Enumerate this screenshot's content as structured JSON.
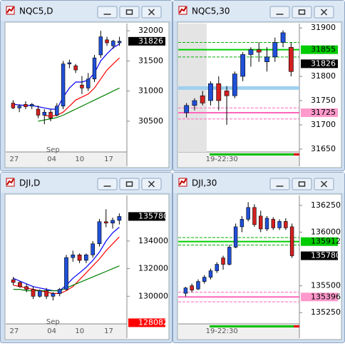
{
  "windows": [
    {
      "title": "NQC5,D",
      "chart": {
        "type": "candlestick",
        "ylim": [
          29990,
          32120
        ],
        "yticks": [
          30500,
          31000,
          31500,
          32000
        ],
        "xticks": [
          "27",
          "Sep",
          "04",
          "10",
          "17"
        ],
        "candles": [
          [
            30800,
            30850,
            30700,
            30720
          ],
          [
            30720,
            30780,
            30650,
            30750
          ],
          [
            30780,
            30830,
            30700,
            30740
          ],
          [
            30750,
            30800,
            30700,
            30780
          ],
          [
            30700,
            30760,
            30550,
            30600
          ],
          [
            30600,
            30700,
            30450,
            30650
          ],
          [
            30650,
            30700,
            30500,
            30550
          ],
          [
            30600,
            30800,
            30580,
            30750
          ],
          [
            30750,
            31500,
            30700,
            31450
          ],
          [
            31450,
            31520,
            31380,
            31470
          ],
          [
            31420,
            31450,
            31300,
            31350
          ],
          [
            31100,
            31250,
            30950,
            31050
          ],
          [
            31050,
            31300,
            31000,
            31200
          ],
          [
            31200,
            31600,
            31150,
            31550
          ],
          [
            31600,
            32000,
            31550,
            31900
          ],
          [
            31850,
            31900,
            31750,
            31800
          ],
          [
            31750,
            31850,
            31700,
            31830
          ],
          [
            31800,
            31900,
            31750,
            31826
          ]
        ],
        "lines": [
          {
            "color": "#0000ff",
            "values": [
              30780,
              30770,
              30760,
              30760,
              30740,
              30720,
              30700,
              30700,
              30900,
              31050,
              31150,
              31150,
              31180,
              31300,
              31500,
              31620,
              31720,
              31780
            ]
          },
          {
            "color": "#ff0000",
            "values": [
              null,
              null,
              null,
              null,
              null,
              30600,
              30580,
              30600,
              30650,
              30750,
              30850,
              30900,
              30950,
              31050,
              31200,
              31350,
              31450,
              31550
            ]
          },
          {
            "color": "#008000",
            "values": [
              null,
              null,
              null,
              null,
              30500,
              30520,
              30540,
              30560,
              30600,
              30650,
              30700,
              30750,
              30800,
              30850,
              30900,
              30950,
              31000,
              31050
            ]
          }
        ],
        "levels": [],
        "tags": [
          {
            "value": 31826,
            "color": "#000000"
          }
        ]
      }
    },
    {
      "title": "NQC5,30",
      "chart": {
        "type": "candlestick",
        "ylim": [
          31644,
          31909
        ],
        "yticks": [
          31650,
          31700,
          31750,
          31800,
          31900
        ],
        "xticks": [
          "19-22:30"
        ],
        "candles": [
          [
            31725,
            31745,
            31715,
            31740
          ],
          [
            31740,
            31755,
            31730,
            31750
          ],
          [
            31760,
            31770,
            31740,
            31745
          ],
          [
            31750,
            31790,
            31740,
            31785
          ],
          [
            31785,
            31800,
            31730,
            31750
          ],
          [
            31770,
            31780,
            31700,
            31760
          ],
          [
            31760,
            31810,
            31755,
            31805
          ],
          [
            31800,
            31850,
            31790,
            31845
          ],
          [
            31845,
            31860,
            31820,
            31855
          ],
          [
            31855,
            31870,
            31830,
            31850
          ],
          [
            31830,
            31860,
            31810,
            31840
          ],
          [
            31840,
            31880,
            31830,
            31870
          ],
          [
            31870,
            31895,
            31860,
            31890
          ],
          [
            31860,
            31870,
            31800,
            31810
          ]
        ],
        "lines": [],
        "levels": [
          {
            "value": 31776,
            "color": "#9fd0f0",
            "style": "band"
          },
          {
            "value": 31870,
            "color": "#00b000",
            "style": "dashed"
          },
          {
            "value": 31855,
            "color": "#00cc00",
            "style": "solid"
          },
          {
            "value": 31840,
            "color": "#00b000",
            "style": "dashed"
          },
          {
            "value": 31735,
            "color": "#ff66bb",
            "style": "dashed"
          },
          {
            "value": 31725,
            "color": "#ff66bb",
            "style": "solid"
          },
          {
            "value": 31712,
            "color": "#ff66bb",
            "style": "dashed"
          }
        ],
        "tags": [
          {
            "value": 31855,
            "color": "#00cc00"
          },
          {
            "value": 31826,
            "color": "#000000"
          },
          {
            "value": 31725,
            "color": "#ff99cc"
          }
        ]
      }
    },
    {
      "title": "DJI,D",
      "chart": {
        "type": "candlestick",
        "ylim": [
          128000,
          137300
        ],
        "yticks": [
          130000,
          132000,
          134000
        ],
        "xticks": [
          "27",
          "Sep",
          "04",
          "10",
          "17"
        ],
        "candles": [
          [
            131200,
            131400,
            130800,
            131000
          ],
          [
            131000,
            131100,
            130600,
            130700
          ],
          [
            130700,
            130900,
            130300,
            130500
          ],
          [
            130500,
            130700,
            129800,
            130000
          ],
          [
            130000,
            130500,
            129900,
            130400
          ],
          [
            130400,
            130600,
            129800,
            130000
          ],
          [
            130000,
            130300,
            129700,
            130200
          ],
          [
            130200,
            130600,
            130000,
            130500
          ],
          [
            130500,
            133000,
            130400,
            132800
          ],
          [
            132800,
            133300,
            132500,
            133000
          ],
          [
            133000,
            133100,
            132400,
            132600
          ],
          [
            132600,
            133100,
            132400,
            133000
          ],
          [
            133000,
            134000,
            132800,
            133800
          ],
          [
            133800,
            135600,
            133600,
            135400
          ],
          [
            135400,
            136300,
            135000,
            135300
          ],
          [
            135300,
            135700,
            134900,
            135500
          ],
          [
            135500,
            136000,
            135200,
            135780
          ]
        ],
        "lines": [
          {
            "color": "#0000ff",
            "values": [
              131300,
              131100,
              130900,
              130700,
              130600,
              130500,
              130400,
              130400,
              130800,
              131300,
              131700,
              132100,
              132600,
              133200,
              134000,
              134600,
              135000
            ]
          },
          {
            "color": "#ff0000",
            "values": [
              130800,
              130700,
              130600,
              130500,
              130400,
              130300,
              130200,
              130200,
              130400,
              130700,
              131200,
              131700,
              132200,
              132700,
              133300,
              133800,
              134300
            ]
          },
          {
            "color": "#008000",
            "values": [
              130500,
              130500,
              130400,
              130400,
              130400,
              130400,
              130400,
              130400,
              130600,
              130800,
              131000,
              131200,
              131400,
              131600,
              131800,
              132000,
              132200
            ]
          }
        ],
        "levels": [],
        "tags": [
          {
            "value": 135780,
            "color": "#000000"
          },
          {
            "value": 128082,
            "color": "#ff0000"
          }
        ]
      }
    },
    {
      "title": "DJI,30",
      "chart": {
        "type": "candlestick",
        "ylim": [
          135145,
          136342
        ],
        "yticks": [
          135250,
          135500,
          136000,
          136250
        ],
        "xticks": [
          "19-22:30"
        ],
        "candles": [
          [
            135430,
            135490,
            135400,
            135480
          ],
          [
            135500,
            135520,
            135440,
            135460
          ],
          [
            135470,
            135560,
            135460,
            135540
          ],
          [
            135540,
            135600,
            135520,
            135580
          ],
          [
            135580,
            135660,
            135560,
            135640
          ],
          [
            135640,
            135720,
            135620,
            135700
          ],
          [
            135760,
            135780,
            135650,
            135700
          ],
          [
            135700,
            135880,
            135690,
            135860
          ],
          [
            135860,
            136080,
            135850,
            136050
          ],
          [
            136050,
            136150,
            136000,
            136120
          ],
          [
            136120,
            136280,
            136100,
            136230
          ],
          [
            136230,
            136260,
            136050,
            136070
          ],
          [
            136150,
            136200,
            136000,
            136030
          ],
          [
            136030,
            136150,
            136010,
            136130
          ],
          [
            136120,
            136140,
            136020,
            136040
          ],
          [
            136040,
            136120,
            136020,
            136100
          ],
          [
            136100,
            136130,
            136020,
            136040
          ],
          [
            136050,
            136080,
            135760,
            135780
          ]
        ],
        "lines": [],
        "levels": [
          {
            "value": 135950,
            "color": "#00b000",
            "style": "dashed"
          },
          {
            "value": 135912,
            "color": "#00cc00",
            "style": "solid"
          },
          {
            "value": 135880,
            "color": "#00b000",
            "style": "dashed"
          },
          {
            "value": 135440,
            "color": "#ff66bb",
            "style": "dashed"
          },
          {
            "value": 135396,
            "color": "#ff66bb",
            "style": "solid"
          },
          {
            "value": 135350,
            "color": "#ff66bb",
            "style": "dashed"
          }
        ],
        "tags": [
          {
            "value": 135912,
            "color": "#00cc00"
          },
          {
            "value": 135780,
            "color": "#000000"
          },
          {
            "value": 135396,
            "color": "#ff99cc"
          }
        ]
      }
    }
  ]
}
